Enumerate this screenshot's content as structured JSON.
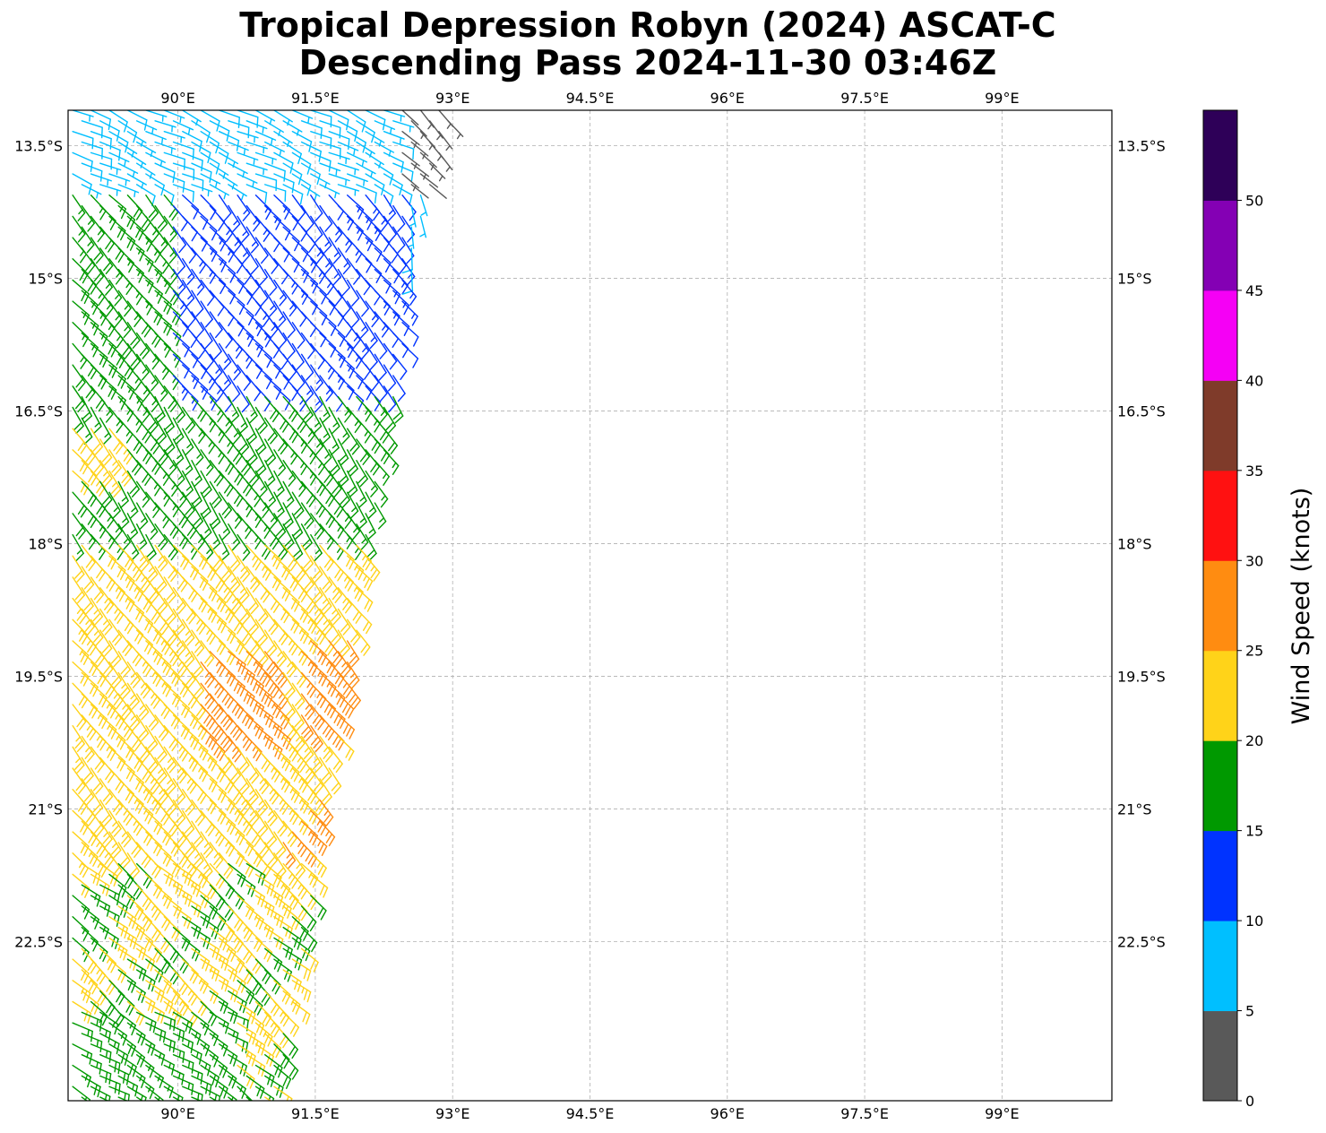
{
  "chart_data": {
    "type": "wind-barb",
    "title_lines": [
      "Tropical Depression Robyn (2024) ASCAT-C",
      "Descending Pass 2024-11-30 03:46Z"
    ],
    "xlim": [
      88.8,
      100.2
    ],
    "ylim": [
      -24.3,
      -13.1
    ],
    "x_ticks": [
      90,
      91.5,
      93,
      94.5,
      96,
      97.5,
      99
    ],
    "x_tick_labels": [
      "90°E",
      "91.5°E",
      "93°E",
      "94.5°E",
      "96°E",
      "97.5°E",
      "99°E"
    ],
    "y_ticks": [
      -13.5,
      -15,
      -16.5,
      -18,
      -19.5,
      -21,
      -22.5
    ],
    "y_tick_labels": [
      "13.5°S",
      "15°S",
      "16.5°S",
      "18°S",
      "19.5°S",
      "21°S",
      "22.5°S"
    ],
    "grid": true,
    "colorbar": {
      "label": "Wind Speed (knots)",
      "bounds": [
        0,
        5,
        10,
        15,
        20,
        25,
        30,
        35,
        40,
        45,
        50,
        55
      ],
      "tick_labels": [
        "0",
        "5",
        "10",
        "15",
        "20",
        "25",
        "30",
        "35",
        "40",
        "45",
        "50"
      ],
      "colors": [
        "#595959",
        "#00bfff",
        "#0033ff",
        "#009900",
        "#ffd319",
        "#ff8c11",
        "#ff1111",
        "#7f3b2a",
        "#f500f5",
        "#8400b4",
        "#2e0058"
      ]
    },
    "swath": {
      "lon_step": 0.2,
      "lat_step": 0.12,
      "regions": [
        {
          "lat_min": -13.1,
          "lat_max": -14.6,
          "speed": 8,
          "dir": 115
        },
        {
          "lat_min": -13.1,
          "lat_max": -14.2,
          "lon_min": 92.4,
          "speed": 3,
          "dir": 135
        },
        {
          "lat_min": -14.0,
          "lat_max": -16.3,
          "speed": 12,
          "dir": 140
        },
        {
          "lat_min": -14.0,
          "lat_max": -15.2,
          "lon_min": 92.5,
          "speed": 8,
          "dir": 170
        },
        {
          "lat_min": -14.0,
          "lat_max": -17.9,
          "lon_max": 89.9,
          "speed": 17,
          "dir": 138
        },
        {
          "lat_min": -16.3,
          "lat_max": -18.1,
          "speed": 17,
          "dir": 145
        },
        {
          "lat_min": -16.6,
          "lat_max": -17.2,
          "lon_max": 89.4,
          "speed": 22,
          "dir": 140
        },
        {
          "lat_min": -18.0,
          "lat_max": -21.8,
          "speed": 22,
          "dir": 140
        },
        {
          "lat_min": -19.2,
          "lat_max": -20.3,
          "lon_min": 90.2,
          "lon_max": 91.1,
          "speed": 27,
          "dir": 135
        },
        {
          "lat_min": -19.0,
          "lat_max": -20.1,
          "lon_min": 91.3,
          "speed": 27,
          "dir": 140
        },
        {
          "lat_min": -20.7,
          "lat_max": -21.5,
          "lon_min": 91.1,
          "speed": 26,
          "dir": 140
        },
        {
          "lat_min": -21.6,
          "lat_max": -24.3,
          "speed": 21,
          "dir": 130
        },
        {
          "lat_min": -21.8,
          "lat_max": -22.5,
          "lon_max": 89.2,
          "speed": 17,
          "dir": 125
        },
        {
          "lat_min": -23.3,
          "lat_max": -24.3,
          "lon_max": 90.6,
          "speed": 17,
          "dir": 120
        }
      ],
      "east_edge": [
        [
          -13.1,
          93.0
        ],
        [
          -14.5,
          92.6
        ],
        [
          -16.2,
          92.4
        ],
        [
          -18.0,
          92.1
        ],
        [
          -19.5,
          91.9
        ],
        [
          -21.0,
          91.6
        ],
        [
          -22.5,
          91.4
        ],
        [
          -24.3,
          91.1
        ]
      ]
    }
  }
}
